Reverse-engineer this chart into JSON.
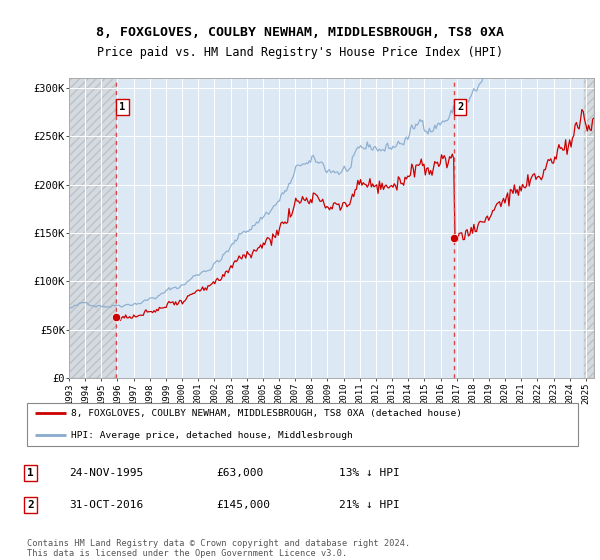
{
  "title_line1": "8, FOXGLOVES, COULBY NEWHAM, MIDDLESBROUGH, TS8 0XA",
  "title_line2": "Price paid vs. HM Land Registry's House Price Index (HPI)",
  "sale1_year": 1995.92,
  "sale1_price": 63000,
  "sale1_label": "1",
  "sale2_year": 2016.83,
  "sale2_price": 145000,
  "sale2_label": "2",
  "ylim": [
    0,
    310000
  ],
  "yticks": [
    0,
    50000,
    100000,
    150000,
    200000,
    250000,
    300000
  ],
  "ylabels": [
    "£0",
    "£50K",
    "£100K",
    "£150K",
    "£200K",
    "£250K",
    "£300K"
  ],
  "xlim_start": 1993.0,
  "xlim_end": 2025.5,
  "legend_entry1": "8, FOXGLOVES, COULBY NEWHAM, MIDDLESBROUGH, TS8 0XA (detached house)",
  "legend_entry2": "HPI: Average price, detached house, Middlesbrough",
  "table_row1_num": "1",
  "table_row1_date": "24-NOV-1995",
  "table_row1_price": "£63,000",
  "table_row1_hpi": "13% ↓ HPI",
  "table_row2_num": "2",
  "table_row2_date": "31-OCT-2016",
  "table_row2_price": "£145,000",
  "table_row2_hpi": "21% ↓ HPI",
  "footnote": "Contains HM Land Registry data © Crown copyright and database right 2024.\nThis data is licensed under the Open Government Licence v3.0.",
  "red_line_color": "#cc0000",
  "blue_line_color": "#88aacc",
  "plot_bg_color": "#dce9f5",
  "hatch_bg_color": "#e8e8e8"
}
